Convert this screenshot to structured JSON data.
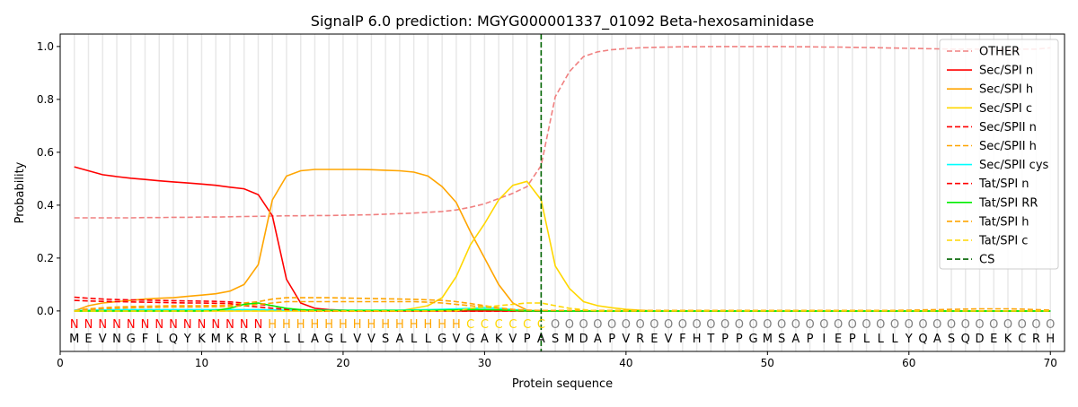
{
  "chart_data": {
    "type": "line",
    "title": "SignalP 6.0 prediction: MGYG000001337_01092 Beta-hexosaminidase",
    "xlabel": "Protein sequence",
    "ylabel": "Probability",
    "xlim": [
      0,
      71
    ],
    "ylim": [
      -0.153,
      1.047
    ],
    "xticks": [
      0,
      10,
      20,
      30,
      40,
      50,
      60,
      70
    ],
    "yticks": [
      0.0,
      0.2,
      0.4,
      0.6,
      0.8,
      1.0
    ],
    "ytick_labels": [
      "0.0",
      "0.2",
      "0.4",
      "0.6",
      "0.8",
      "1.0"
    ],
    "legend_position": "top-right",
    "cleavage_site": 34,
    "cs_label": "CS",
    "cs_color": "#006400",
    "sequence": [
      "M",
      "E",
      "V",
      "N",
      "G",
      "F",
      "L",
      "Q",
      "Y",
      "K",
      "M",
      "K",
      "R",
      "R",
      "Y",
      "L",
      "L",
      "A",
      "G",
      "L",
      "V",
      "V",
      "S",
      "A",
      "L",
      "L",
      "G",
      "V",
      "G",
      "A",
      "K",
      "V",
      "P",
      "A",
      "S",
      "M",
      "D",
      "A",
      "P",
      "V",
      "R",
      "E",
      "V",
      "F",
      "H",
      "T",
      "P",
      "P",
      "G",
      "M",
      "S",
      "A",
      "P",
      "I",
      "E",
      "P",
      "L",
      "L",
      "L",
      "Y",
      "Q",
      "A",
      "S",
      "Q",
      "D",
      "E",
      "K",
      "C",
      "R",
      "H"
    ],
    "region_labels": [
      "N",
      "N",
      "N",
      "N",
      "N",
      "N",
      "N",
      "N",
      "N",
      "N",
      "N",
      "N",
      "N",
      "N",
      "H",
      "H",
      "H",
      "H",
      "H",
      "H",
      "H",
      "H",
      "H",
      "H",
      "H",
      "H",
      "H",
      "H",
      "C",
      "C",
      "C",
      "C",
      "C",
      "C",
      "O",
      "O",
      "O",
      "O",
      "O",
      "O",
      "O",
      "O",
      "O",
      "O",
      "O",
      "O",
      "O",
      "O",
      "O",
      "O",
      "O",
      "O",
      "O",
      "O",
      "O",
      "O",
      "O",
      "O",
      "O",
      "O",
      "O",
      "O",
      "O",
      "O",
      "O",
      "O",
      "O",
      "O",
      "O",
      "O"
    ],
    "region_colors": {
      "N": "#ff0000",
      "H": "#ffa500",
      "C": "#ffd700",
      "O": "#808080"
    },
    "series": [
      {
        "name": "OTHER",
        "color": "#f08080",
        "dash": true,
        "values": [
          0.352,
          0.352,
          0.352,
          0.352,
          0.352,
          0.353,
          0.353,
          0.354,
          0.354,
          0.355,
          0.355,
          0.356,
          0.357,
          0.358,
          0.359,
          0.36,
          0.36,
          0.361,
          0.361,
          0.362,
          0.363,
          0.364,
          0.366,
          0.368,
          0.37,
          0.373,
          0.376,
          0.382,
          0.392,
          0.405,
          0.425,
          0.445,
          0.47,
          0.55,
          0.81,
          0.905,
          0.962,
          0.98,
          0.988,
          0.992,
          0.995,
          0.997,
          0.998,
          0.999,
          0.999,
          1.0,
          1.0,
          1.0,
          1.0,
          1.0,
          1.0,
          0.999,
          0.999,
          0.998,
          0.998,
          0.997,
          0.996,
          0.995,
          0.994,
          0.993,
          0.992,
          0.991,
          0.99,
          0.99,
          0.99,
          0.99,
          0.99,
          0.99,
          0.99,
          0.995
        ]
      },
      {
        "name": "Sec/SPI n",
        "color": "#ff0000",
        "dash": false,
        "values": [
          0.545,
          0.53,
          0.515,
          0.508,
          0.502,
          0.497,
          0.492,
          0.488,
          0.484,
          0.48,
          0.475,
          0.468,
          0.462,
          0.44,
          0.36,
          0.12,
          0.03,
          0.01,
          0.005,
          0.003
        ]
      },
      {
        "name": "Sec/SPI h",
        "color": "#ffa500",
        "dash": false,
        "values": [
          0,
          0.02,
          0.03,
          0.035,
          0.04,
          0.045,
          0.048,
          0.05,
          0.055,
          0.06,
          0.065,
          0.075,
          0.1,
          0.175,
          0.42,
          0.51,
          0.53,
          0.535,
          0.535,
          0.535,
          0.535,
          0.534,
          0.532,
          0.53,
          0.525,
          0.51,
          0.47,
          0.41,
          0.3,
          0.2,
          0.1,
          0.03,
          0.003,
          0
        ]
      },
      {
        "name": "Sec/SPI c",
        "color": "#ffd700",
        "dash": false,
        "values": [
          0,
          0,
          0,
          0,
          0,
          0,
          0,
          0,
          0,
          0,
          0,
          0,
          0,
          0,
          0,
          0,
          0,
          0,
          0,
          0,
          0,
          0,
          0,
          0,
          0.01,
          0.02,
          0.05,
          0.13,
          0.25,
          0.33,
          0.42,
          0.475,
          0.49,
          0.42,
          0.17,
          0.085,
          0.035,
          0.02,
          0.012,
          0.006,
          0.003
        ]
      },
      {
        "name": "Sec/SPII n",
        "color": "#ff0000",
        "dash": true,
        "values": [
          0.052,
          0.048,
          0.045,
          0.043,
          0.042,
          0.041,
          0.04,
          0.039,
          0.038,
          0.037,
          0.036,
          0.034,
          0.03,
          0.025,
          0.02,
          0.008,
          0.003
        ]
      },
      {
        "name": "Sec/SPII h",
        "color": "#ffa500",
        "dash": true,
        "values": [
          0.003,
          0.008,
          0.012,
          0.015,
          0.017,
          0.018,
          0.019,
          0.02,
          0.02,
          0.02,
          0.021,
          0.022,
          0.03,
          0.035,
          0.045,
          0.05,
          0.05,
          0.05,
          0.05,
          0.049,
          0.048,
          0.047,
          0.046,
          0.045,
          0.044,
          0.042,
          0.04,
          0.035,
          0.028,
          0.02,
          0.012,
          0.006,
          0.003
        ]
      },
      {
        "name": "Sec/SPII cys",
        "color": "#00ffff",
        "dash": false,
        "values": [
          0.002,
          0.003,
          0.004,
          0.005,
          0.005,
          0.005,
          0.005,
          0.005,
          0.005,
          0.005,
          0.005,
          0.005,
          0.005,
          0.005,
          0.004,
          0.003,
          0.003,
          0.003,
          0.003,
          0.003,
          0.003,
          0.003,
          0.003,
          0.003,
          0.004,
          0.005,
          0.006,
          0.008,
          0.01,
          0.012,
          0.01,
          0.005,
          0.002
        ]
      },
      {
        "name": "Tat/SPI n",
        "color": "#ff0000",
        "dash": true,
        "values": [
          0.04,
          0.038,
          0.036,
          0.035,
          0.034,
          0.033,
          0.032,
          0.031,
          0.03,
          0.03,
          0.029,
          0.028,
          0.02,
          0.015,
          0.01,
          0.005
        ]
      },
      {
        "name": "Tat/SPI RR",
        "color": "#00ee00",
        "dash": false,
        "values": [
          0,
          0,
          0,
          0,
          0,
          0,
          0,
          0,
          0,
          0,
          0.002,
          0.01,
          0.025,
          0.03,
          0.02,
          0.01,
          0.005,
          0.003,
          0.002,
          0.002,
          0.002,
          0.002,
          0.002,
          0.002,
          0.002,
          0.002,
          0.003,
          0.004,
          0.005,
          0.005,
          0.004,
          0.002
        ]
      },
      {
        "name": "Tat/SPI h",
        "color": "#ffa500",
        "dash": true,
        "values": [
          0,
          0.005,
          0.008,
          0.01,
          0.012,
          0.013,
          0.014,
          0.015,
          0.015,
          0.015,
          0.016,
          0.017,
          0.02,
          0.025,
          0.03,
          0.035,
          0.035,
          0.035,
          0.035,
          0.035,
          0.035,
          0.035,
          0.035,
          0.035,
          0.035,
          0.033,
          0.03,
          0.025,
          0.02,
          0.015,
          0.01,
          0.005,
          0.003,
          0.002,
          0.002,
          0.002,
          0.002,
          0.002,
          0.002,
          0.002,
          0.002,
          0.002,
          0.002,
          0.002,
          0.002,
          0.002,
          0.002,
          0.002,
          0.002,
          0.002,
          0.002,
          0.002,
          0.002,
          0.002,
          0.002,
          0.002,
          0.002,
          0.002,
          0.002,
          0.003,
          0.004,
          0.005,
          0.006,
          0.007,
          0.008,
          0.008,
          0.008,
          0.007,
          0.005,
          0.003
        ]
      },
      {
        "name": "Tat/SPI c",
        "color": "#ffd700",
        "dash": true,
        "values": [
          0,
          0,
          0,
          0,
          0,
          0,
          0,
          0,
          0,
          0,
          0,
          0,
          0,
          0,
          0,
          0,
          0,
          0,
          0,
          0,
          0,
          0,
          0,
          0,
          0,
          0,
          0,
          0,
          0.01,
          0.015,
          0.02,
          0.025,
          0.03,
          0.03,
          0.02,
          0.01,
          0.005
        ]
      }
    ]
  }
}
